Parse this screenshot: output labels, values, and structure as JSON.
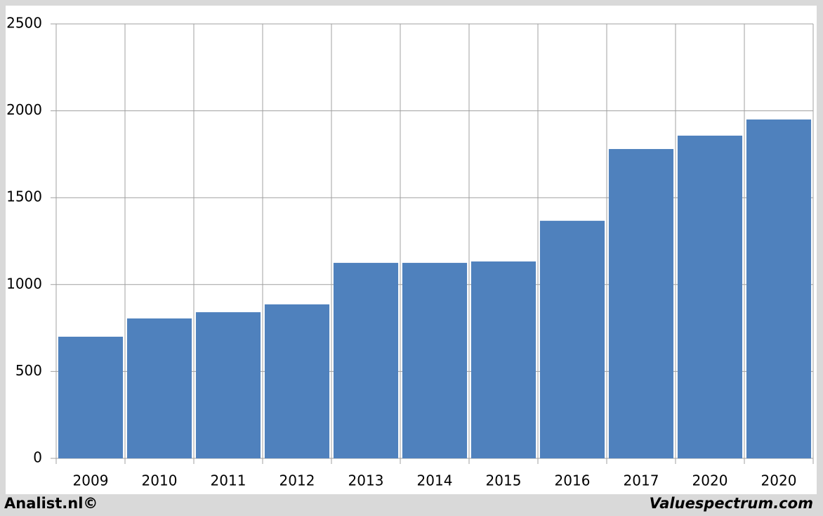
{
  "chart_data": {
    "type": "bar",
    "categories": [
      "2009",
      "2010",
      "2011",
      "2012",
      "2013",
      "2014",
      "2015",
      "2016",
      "2017",
      "2020",
      "2020"
    ],
    "values": [
      700,
      805,
      841,
      886,
      1125,
      1125,
      1133,
      1367,
      1780,
      1857,
      1950
    ],
    "color": "#4f81bd",
    "ylim": [
      0,
      2500
    ],
    "yticks": [
      0,
      500,
      1000,
      1500,
      2000,
      2500
    ],
    "grid": true
  },
  "footer": {
    "left": "Analist.nl©",
    "right": "Valuespectrum.com"
  }
}
